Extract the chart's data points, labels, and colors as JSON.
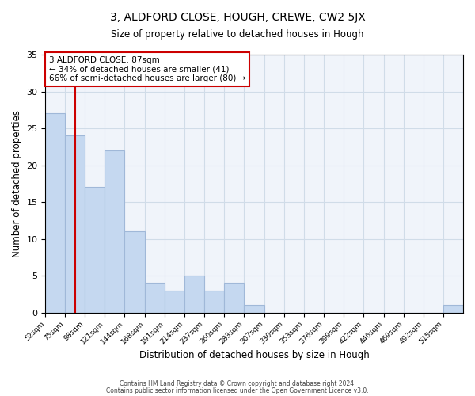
{
  "title1": "3, ALDFORD CLOSE, HOUGH, CREWE, CW2 5JX",
  "title2": "Size of property relative to detached houses in Hough",
  "xlabel": "Distribution of detached houses by size in Hough",
  "ylabel": "Number of detached properties",
  "bin_edges": [
    52,
    75,
    98,
    121,
    144,
    168,
    191,
    214,
    237,
    260,
    283,
    307,
    330,
    353,
    376,
    399,
    422,
    446,
    469,
    492,
    515,
    538
  ],
  "bar_heights": [
    27,
    24,
    17,
    22,
    11,
    4,
    3,
    5,
    3,
    4,
    1,
    0,
    0,
    0,
    0,
    0,
    0,
    0,
    0,
    0,
    1
  ],
  "tick_labels": [
    "52sqm",
    "75sqm",
    "98sqm",
    "121sqm",
    "144sqm",
    "168sqm",
    "191sqm",
    "214sqm",
    "237sqm",
    "260sqm",
    "283sqm",
    "307sqm",
    "330sqm",
    "353sqm",
    "376sqm",
    "399sqm",
    "422sqm",
    "446sqm",
    "469sqm",
    "492sqm",
    "515sqm"
  ],
  "bar_color": "#c5d8f0",
  "bar_edgecolor": "#a0b8d8",
  "vline_x": 87,
  "vline_color": "#cc0000",
  "annotation_text": "3 ALDFORD CLOSE: 87sqm\n← 34% of detached houses are smaller (41)\n66% of semi-detached houses are larger (80) →",
  "annotation_box_edgecolor": "#cc0000",
  "ylim": [
    0,
    35
  ],
  "yticks": [
    0,
    5,
    10,
    15,
    20,
    25,
    30,
    35
  ],
  "grid_color": "#d0dce8",
  "bg_color": "#f0f4fa",
  "footnote1": "Contains HM Land Registry data © Crown copyright and database right 2024.",
  "footnote2": "Contains public sector information licensed under the Open Government Licence v3.0."
}
